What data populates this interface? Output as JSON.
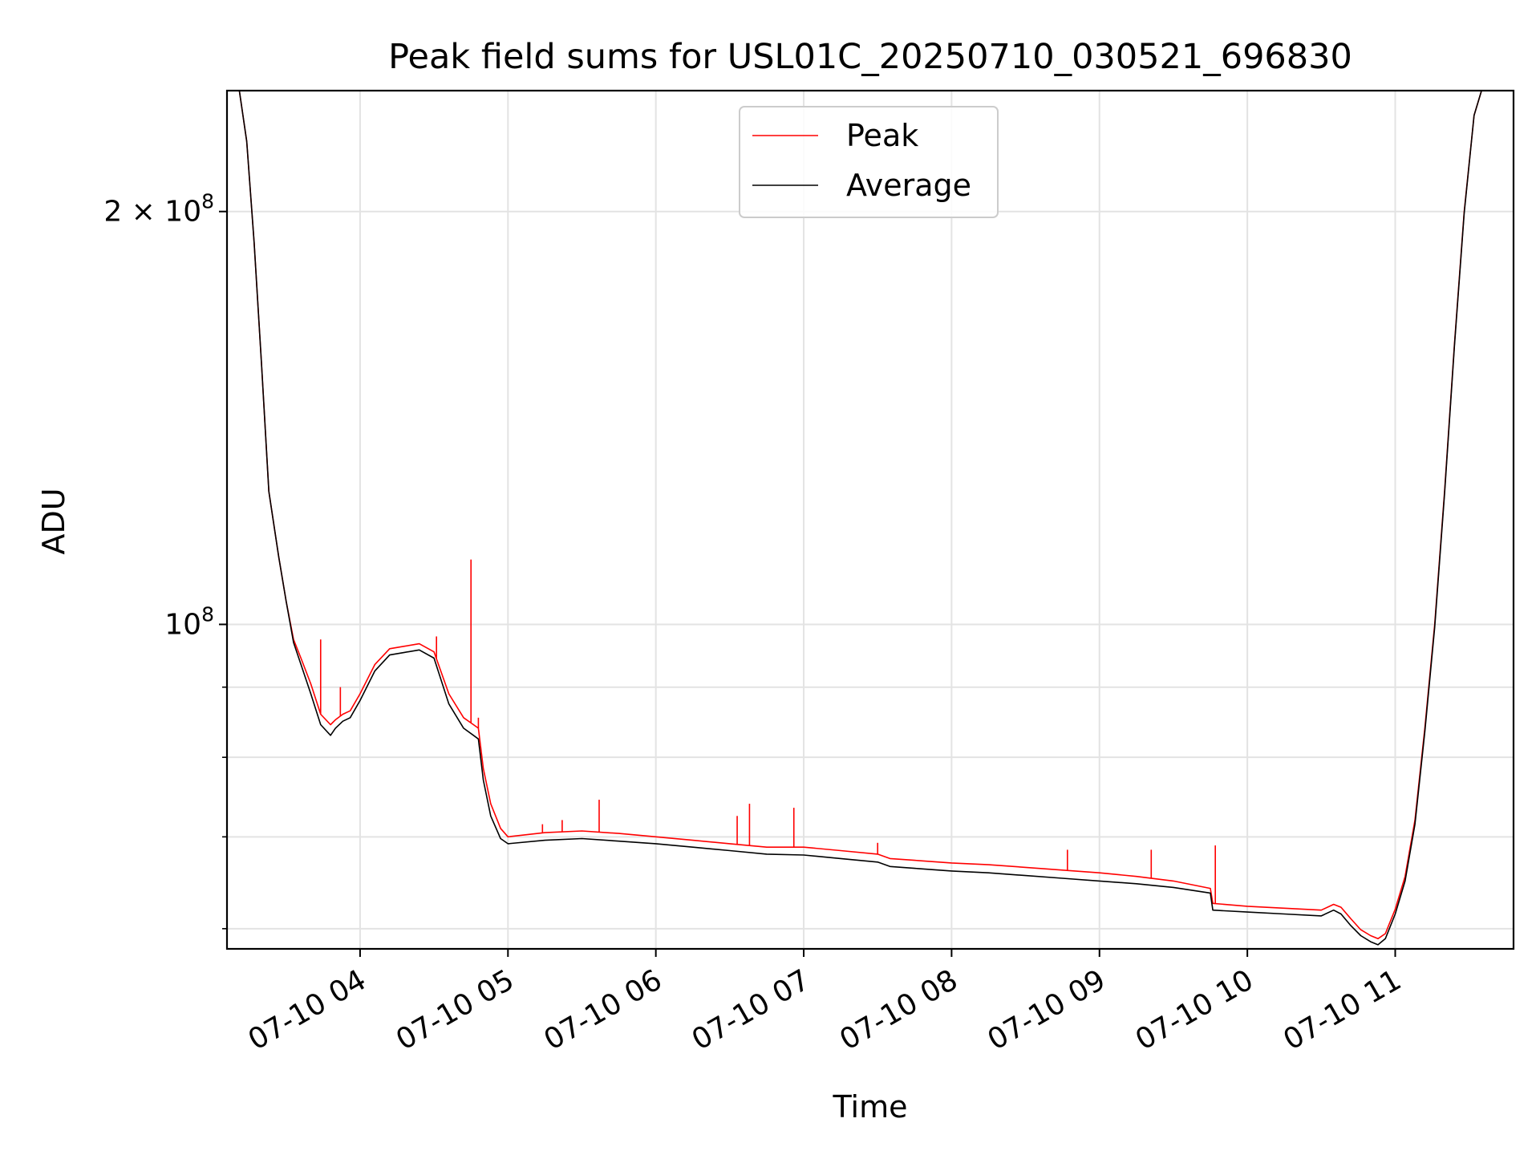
{
  "chart_data": {
    "type": "line",
    "title": "Peak field sums for USL01C_20250710_030521_696830",
    "xlabel": "Time",
    "ylabel": "ADU",
    "y_scale": "log",
    "ylim": [
      58000000,
      245000000
    ],
    "xlim": [
      "07-10 03:06",
      "07-10 11:48"
    ],
    "x_ticks": [
      "07-10 04",
      "07-10 05",
      "07-10 06",
      "07-10 07",
      "07-10 08",
      "07-10 09",
      "07-10 10",
      "07-10 11"
    ],
    "y_major_ticks": [
      {
        "value": 100000000,
        "base": "10",
        "exp": "8",
        "mantissa": ""
      },
      {
        "value": 200000000,
        "base": "10",
        "exp": "8",
        "mantissa": "2 × "
      }
    ],
    "y_minor_ticks": [
      60000000,
      70000000,
      80000000,
      90000000
    ],
    "grid": true,
    "legend_placement": "top-center",
    "colors": {
      "peak": "#ff0000",
      "average": "#000000",
      "grid": "#e3e3e3"
    },
    "series": [
      {
        "name": "Peak",
        "x": [
          "07-10 03:11",
          "07-10 03:14",
          "07-10 03:17",
          "07-10 03:20",
          "07-10 03:23",
          "07-10 03:27",
          "07-10 03:30",
          "07-10 03:33",
          "07-10 03:36",
          "07-10 03:40",
          "07-10 03:44",
          "07-10 03:48",
          "07-10 03:50",
          "07-10 03:53",
          "07-10 03:56",
          "07-10 04:00",
          "07-10 04:06",
          "07-10 04:12",
          "07-10 04:18",
          "07-10 04:24",
          "07-10 04:30",
          "07-10 04:36",
          "07-10 04:42",
          "07-10 04:46",
          "07-10 04:48",
          "07-10 04:50",
          "07-10 04:53",
          "07-10 04:57",
          "07-10 05:00",
          "07-10 05:15",
          "07-10 05:30",
          "07-10 05:45",
          "07-10 06:00",
          "07-10 06:15",
          "07-10 06:30",
          "07-10 06:45",
          "07-10 07:00",
          "07-10 07:15",
          "07-10 07:30",
          "07-10 07:35",
          "07-10 07:45",
          "07-10 08:00",
          "07-10 08:15",
          "07-10 08:30",
          "07-10 08:45",
          "07-10 09:00",
          "07-10 09:15",
          "07-10 09:30",
          "07-10 09:45",
          "07-10 09:46",
          "07-10 10:00",
          "07-10 10:15",
          "07-10 10:30",
          "07-10 10:35",
          "07-10 10:38",
          "07-10 10:42",
          "07-10 10:46",
          "07-10 10:50",
          "07-10 10:53",
          "07-10 10:56",
          "07-10 11:00",
          "07-10 11:04",
          "07-10 11:08",
          "07-10 11:12",
          "07-10 11:16",
          "07-10 11:20",
          "07-10 11:24",
          "07-10 11:28",
          "07-10 11:32",
          "07-10 11:35"
        ],
        "values": [
          245000000,
          225000000,
          190000000,
          155000000,
          125000000,
          112000000,
          104000000,
          97500000,
          94500000,
          90500000,
          86000000,
          84500000,
          85200000,
          86000000,
          86500000,
          89000000,
          93500000,
          96000000,
          96400000,
          96800000,
          95500000,
          89000000,
          85500000,
          84500000,
          84000000,
          78500000,
          74000000,
          71000000,
          70000000,
          70500000,
          70700000,
          70400000,
          70000000,
          69600000,
          69200000,
          68800000,
          68800000,
          68400000,
          68000000,
          67500000,
          67300000,
          67000000,
          66800000,
          66500000,
          66200000,
          65900000,
          65500000,
          65000000,
          64200000,
          62600000,
          62300000,
          62100000,
          61900000,
          62500000,
          62200000,
          61000000,
          59900000,
          59300000,
          59000000,
          59500000,
          62000000,
          65500000,
          72000000,
          84000000,
          100000000,
          125000000,
          160000000,
          200000000,
          235000000,
          245000000
        ]
      },
      {
        "name": "Average",
        "x": [
          "07-10 03:11",
          "07-10 03:14",
          "07-10 03:17",
          "07-10 03:20",
          "07-10 03:23",
          "07-10 03:27",
          "07-10 03:30",
          "07-10 03:33",
          "07-10 03:36",
          "07-10 03:40",
          "07-10 03:44",
          "07-10 03:48",
          "07-10 03:50",
          "07-10 03:53",
          "07-10 03:56",
          "07-10 04:00",
          "07-10 04:06",
          "07-10 04:12",
          "07-10 04:18",
          "07-10 04:24",
          "07-10 04:30",
          "07-10 04:36",
          "07-10 04:42",
          "07-10 04:46",
          "07-10 04:48",
          "07-10 04:50",
          "07-10 04:53",
          "07-10 04:57",
          "07-10 05:00",
          "07-10 05:15",
          "07-10 05:30",
          "07-10 05:45",
          "07-10 06:00",
          "07-10 06:15",
          "07-10 06:30",
          "07-10 06:45",
          "07-10 07:00",
          "07-10 07:15",
          "07-10 07:30",
          "07-10 07:35",
          "07-10 07:45",
          "07-10 08:00",
          "07-10 08:15",
          "07-10 08:30",
          "07-10 08:45",
          "07-10 09:00",
          "07-10 09:15",
          "07-10 09:30",
          "07-10 09:45",
          "07-10 09:46",
          "07-10 10:00",
          "07-10 10:15",
          "07-10 10:30",
          "07-10 10:35",
          "07-10 10:38",
          "07-10 10:42",
          "07-10 10:46",
          "07-10 10:50",
          "07-10 10:53",
          "07-10 10:56",
          "07-10 11:00",
          "07-10 11:04",
          "07-10 11:08",
          "07-10 11:12",
          "07-10 11:16",
          "07-10 11:20",
          "07-10 11:24",
          "07-10 11:28",
          "07-10 11:32",
          "07-10 11:35"
        ],
        "values": [
          245000000,
          225000000,
          190000000,
          155000000,
          125000000,
          112000000,
          104000000,
          97000000,
          93500000,
          89000000,
          84500000,
          83000000,
          84000000,
          85000000,
          85500000,
          88000000,
          92500000,
          95000000,
          95400000,
          95800000,
          94500000,
          87500000,
          84000000,
          83000000,
          82500000,
          77000000,
          72500000,
          69800000,
          69200000,
          69600000,
          69800000,
          69500000,
          69200000,
          68800000,
          68400000,
          68000000,
          67900000,
          67500000,
          67100000,
          66600000,
          66400000,
          66100000,
          65900000,
          65600000,
          65300000,
          65000000,
          64700000,
          64300000,
          63700000,
          61900000,
          61700000,
          61500000,
          61300000,
          61900000,
          61500000,
          60300000,
          59300000,
          58700000,
          58400000,
          59000000,
          61500000,
          65000000,
          71500000,
          83500000,
          99500000,
          124500000,
          159500000,
          199500000,
          235000000,
          245000000
        ]
      }
    ],
    "spikes": [
      {
        "series": "Peak",
        "x": "07-10 03:44",
        "value": 97500000
      },
      {
        "series": "Peak",
        "x": "07-10 03:52",
        "value": 90000000
      },
      {
        "series": "Peak",
        "x": "07-10 04:31",
        "value": 98000000
      },
      {
        "series": "Peak",
        "x": "07-10 04:45",
        "value": 111500000
      },
      {
        "series": "Peak",
        "x": "07-10 04:48",
        "value": 85500000
      },
      {
        "series": "Peak",
        "x": "07-10 05:14",
        "value": 71500000
      },
      {
        "series": "Peak",
        "x": "07-10 05:22",
        "value": 72000000
      },
      {
        "series": "Peak",
        "x": "07-10 05:37",
        "value": 74500000
      },
      {
        "series": "Peak",
        "x": "07-10 06:33",
        "value": 72500000
      },
      {
        "series": "Peak",
        "x": "07-10 06:38",
        "value": 74000000
      },
      {
        "series": "Peak",
        "x": "07-10 06:56",
        "value": 73500000
      },
      {
        "series": "Peak",
        "x": "07-10 07:30",
        "value": 69300000
      },
      {
        "series": "Peak",
        "x": "07-10 08:47",
        "value": 68500000
      },
      {
        "series": "Peak",
        "x": "07-10 09:21",
        "value": 68500000
      },
      {
        "series": "Peak",
        "x": "07-10 09:47",
        "value": 69000000
      }
    ],
    "legend": [
      {
        "label": "Peak",
        "color": "#ff0000"
      },
      {
        "label": "Average",
        "color": "#000000"
      }
    ]
  }
}
